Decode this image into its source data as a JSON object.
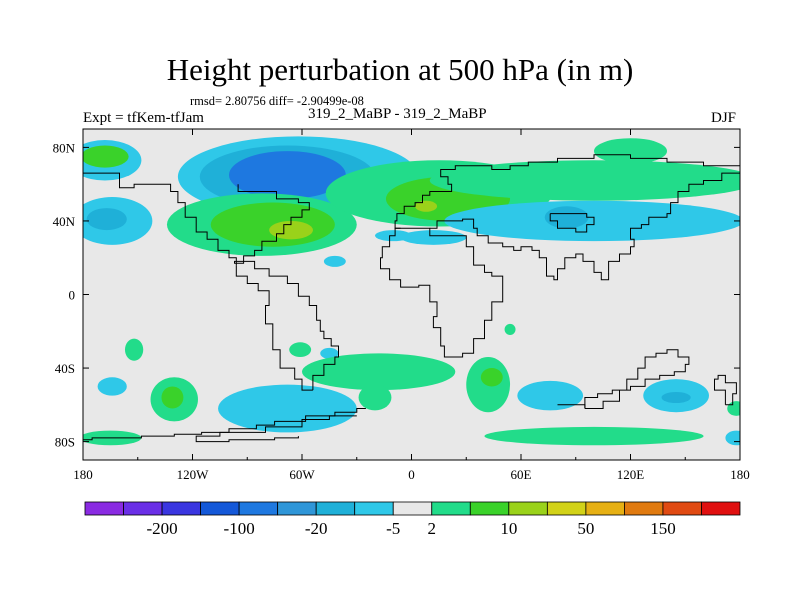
{
  "header": {
    "title": "Height perturbation at 500 hPa (in m)",
    "stats": "rmsd= 2.80756 diff= -2.90499e-08",
    "experiment": "Expt = tfKem-tfJam",
    "runs": "319_2_MaBP - 319_2_MaBP",
    "season": "DJF"
  },
  "chart_data": {
    "type": "heatmap",
    "title": "Height perturbation at 500 hPa (in m)",
    "xlabel": "",
    "ylabel": "",
    "xlim": [
      -180,
      180
    ],
    "ylim": [
      -90,
      90
    ],
    "x_ticks": [
      {
        "value": -180,
        "label": "180"
      },
      {
        "value": -120,
        "label": "120W"
      },
      {
        "value": -60,
        "label": "60W"
      },
      {
        "value": 0,
        "label": "0"
      },
      {
        "value": 60,
        "label": "60E"
      },
      {
        "value": 120,
        "label": "120E"
      },
      {
        "value": 180,
        "label": "180"
      }
    ],
    "y_ticks": [
      {
        "value": 80,
        "label": "80N"
      },
      {
        "value": 40,
        "label": "40N"
      },
      {
        "value": 0,
        "label": "0"
      },
      {
        "value": -40,
        "label": "40S"
      },
      {
        "value": -80,
        "label": "80S"
      }
    ],
    "colorbar": {
      "colors": [
        "#8a2be2",
        "#6a2fe6",
        "#3a36e0",
        "#1458d8",
        "#1e78e0",
        "#2f96d8",
        "#1fb0d8",
        "#2fc8e8",
        "#e8e8e8",
        "#22dc8a",
        "#3ad22a",
        "#9ad21a",
        "#d2d218",
        "#e6b014",
        "#e07a10",
        "#e04a12",
        "#e01010"
      ],
      "labels": [
        "-200",
        "-100",
        "-20",
        "-5",
        "2",
        "10",
        "50",
        "150"
      ],
      "label_after_box": [
        1,
        3,
        5,
        7,
        8,
        10,
        12,
        14
      ]
    },
    "regions": [
      {
        "name": "arctic-west",
        "color": "#2fc8e8",
        "lon": -168,
        "lat": 73,
        "rx": 20,
        "ry": 11
      },
      {
        "name": "arctic-west-core",
        "color": "#3ad22a",
        "lon": -168,
        "lat": 75,
        "rx": 13,
        "ry": 6
      },
      {
        "name": "pacific-north-low",
        "color": "#2fc8e8",
        "lon": -62,
        "lat": 64,
        "rx": 66,
        "ry": 22
      },
      {
        "name": "pacific-north-low-mid",
        "color": "#1fb0d8",
        "lon": -68,
        "lat": 64,
        "rx": 48,
        "ry": 17
      },
      {
        "name": "pacific-north-low-core",
        "color": "#1e78e0",
        "lon": -68,
        "lat": 65,
        "rx": 32,
        "ry": 13
      },
      {
        "name": "pacific-west-40n",
        "color": "#2fc8e8",
        "lon": -164,
        "lat": 40,
        "rx": 22,
        "ry": 13
      },
      {
        "name": "pacific-west-40n-core",
        "color": "#1fb0d8",
        "lon": -167,
        "lat": 41,
        "rx": 11,
        "ry": 6
      },
      {
        "name": "north-pacific-high",
        "color": "#22dc8a",
        "lon": -82,
        "lat": 38,
        "rx": 52,
        "ry": 17
      },
      {
        "name": "north-pacific-high-mid",
        "color": "#3ad22a",
        "lon": -76,
        "lat": 38,
        "rx": 34,
        "ry": 12
      },
      {
        "name": "north-pacific-high-core",
        "color": "#9ad21a",
        "lon": -66,
        "lat": 35,
        "rx": 12,
        "ry": 5
      },
      {
        "name": "atlantic-europe-high",
        "color": "#22dc8a",
        "lon": 15,
        "lat": 55,
        "rx": 62,
        "ry": 18
      },
      {
        "name": "europe-high-mid",
        "color": "#3ad22a",
        "lon": 20,
        "lat": 52,
        "rx": 34,
        "ry": 12
      },
      {
        "name": "europe-high-core",
        "color": "#9ad21a",
        "lon": 8,
        "lat": 48,
        "rx": 6,
        "ry": 3
      },
      {
        "name": "asia-jet-high",
        "color": "#22dc8a",
        "lon": 100,
        "lat": 62,
        "rx": 90,
        "ry": 11
      },
      {
        "name": "north-east-high",
        "color": "#22dc8a",
        "lon": 120,
        "lat": 78,
        "rx": 20,
        "ry": 7
      },
      {
        "name": "asia-low-band",
        "color": "#2fc8e8",
        "lon": 100,
        "lat": 40,
        "rx": 82,
        "ry": 11
      },
      {
        "name": "asia-low-core",
        "color": "#1fb0d8",
        "lon": 85,
        "lat": 42,
        "rx": 12,
        "ry": 6
      },
      {
        "name": "east-pacific-low",
        "color": "#2fc8e8",
        "lon": 12,
        "lat": 31,
        "rx": 18,
        "ry": 4
      },
      {
        "name": "tropics-spot",
        "color": "#2fc8e8",
        "lon": -42,
        "lat": 18,
        "rx": 6,
        "ry": 3
      },
      {
        "name": "indian-spot",
        "color": "#22dc8a",
        "lon": 54,
        "lat": -19,
        "rx": 3,
        "ry": 3
      },
      {
        "name": "south-pacific-spot-1",
        "color": "#22dc8a",
        "lon": -152,
        "lat": -30,
        "rx": 5,
        "ry": 6
      },
      {
        "name": "south-pacific-spot-2",
        "color": "#22dc8a",
        "lon": -61,
        "lat": -30,
        "rx": 6,
        "ry": 4
      },
      {
        "name": "south-pacific-spot-3",
        "color": "#2fc8e8",
        "lon": -45,
        "lat": -32,
        "rx": 5,
        "ry": 3
      },
      {
        "name": "southwest-pacific-low",
        "color": "#2fc8e8",
        "lon": -164,
        "lat": -50,
        "rx": 8,
        "ry": 5
      },
      {
        "name": "south-pacific-high",
        "color": "#22dc8a",
        "lon": -130,
        "lat": -57,
        "rx": 13,
        "ry": 12
      },
      {
        "name": "south-pacific-high-core",
        "color": "#3ad22a",
        "lon": -131,
        "lat": -56,
        "rx": 6,
        "ry": 6
      },
      {
        "name": "south-atlantic-band-low",
        "color": "#2fc8e8",
        "lon": -68,
        "lat": -62,
        "rx": 38,
        "ry": 13
      },
      {
        "name": "south-atlantic-band-high",
        "color": "#22dc8a",
        "lon": -18,
        "lat": -42,
        "rx": 42,
        "ry": 10
      },
      {
        "name": "south-atlantic-spot",
        "color": "#22dc8a",
        "lon": -20,
        "lat": -56,
        "rx": 9,
        "ry": 7
      },
      {
        "name": "south-indian-high",
        "color": "#22dc8a",
        "lon": 42,
        "lat": -49,
        "rx": 12,
        "ry": 15
      },
      {
        "name": "south-indian-high-core",
        "color": "#3ad22a",
        "lon": 44,
        "lat": -45,
        "rx": 6,
        "ry": 5
      },
      {
        "name": "south-indian-low",
        "color": "#2fc8e8",
        "lon": 76,
        "lat": -55,
        "rx": 18,
        "ry": 8
      },
      {
        "name": "southern-ocean-high",
        "color": "#22dc8a",
        "lon": 100,
        "lat": -77,
        "rx": 60,
        "ry": 5
      },
      {
        "name": "southeast-low",
        "color": "#2fc8e8",
        "lon": 145,
        "lat": -55,
        "rx": 18,
        "ry": 9
      },
      {
        "name": "southeast-low-core",
        "color": "#1fb0d8",
        "lon": 145,
        "lat": -56,
        "rx": 8,
        "ry": 3
      },
      {
        "name": "antarctic-west-high",
        "color": "#22dc8a",
        "lon": -165,
        "lat": -78,
        "rx": 17,
        "ry": 4
      },
      {
        "name": "antarctic-east-low",
        "color": "#2fc8e8",
        "lon": 178,
        "lat": -78,
        "rx": 6,
        "ry": 4
      },
      {
        "name": "antarctic-east-high",
        "color": "#22dc8a",
        "lon": 178,
        "lat": -62,
        "rx": 5,
        "ry": 4
      },
      {
        "name": "north-central-low",
        "color": "#2fc8e8",
        "lon": -10,
        "lat": 32,
        "rx": 10,
        "ry": 3
      }
    ],
    "boundaries": [
      [
        [
          -25,
          -62
        ],
        [
          -30,
          -64
        ],
        [
          -42,
          -66
        ],
        [
          -58,
          -69
        ],
        [
          -75,
          -71
        ],
        [
          -85,
          -73
        ],
        [
          -100,
          -75
        ],
        [
          -115,
          -76
        ],
        [
          -130,
          -77
        ],
        [
          -148,
          -78
        ],
        [
          -160,
          -78
        ],
        [
          -175,
          -79
        ],
        [
          -180,
          -80
        ]
      ],
      [
        [
          -30,
          -66
        ],
        [
          -45,
          -68
        ],
        [
          -60,
          -72
        ],
        [
          -80,
          -75
        ],
        [
          -105,
          -77
        ],
        [
          -118,
          -78
        ],
        [
          -118,
          -80
        ],
        [
          -100,
          -79
        ],
        [
          -75,
          -78
        ],
        [
          -62,
          -77
        ]
      ],
      [
        [
          -54,
          -52
        ],
        [
          -54,
          -44
        ],
        [
          -48,
          -38
        ],
        [
          -42,
          -34
        ],
        [
          -40,
          -28
        ],
        [
          -44,
          -24
        ],
        [
          -48,
          -20
        ],
        [
          -50,
          -14
        ],
        [
          -52,
          -6
        ],
        [
          -56,
          -1
        ],
        [
          -62,
          6
        ],
        [
          -68,
          10
        ],
        [
          -75,
          10
        ],
        [
          -78,
          14
        ],
        [
          -86,
          18
        ],
        [
          -97,
          17
        ],
        [
          -92,
          21
        ],
        [
          -86,
          24
        ],
        [
          -82,
          29
        ],
        [
          -74,
          33
        ],
        [
          -70,
          38
        ],
        [
          -66,
          42
        ],
        [
          -60,
          46
        ],
        [
          -56,
          50
        ],
        [
          -62,
          52
        ],
        [
          -74,
          56
        ],
        [
          -84,
          56
        ],
        [
          -95,
          60
        ]
      ],
      [
        [
          -54,
          -52
        ],
        [
          -60,
          -46
        ],
        [
          -64,
          -40
        ],
        [
          -72,
          -30
        ],
        [
          -76,
          -16
        ],
        [
          -80,
          -6
        ],
        [
          -78,
          2
        ],
        [
          -84,
          6
        ],
        [
          -90,
          10
        ],
        [
          -96,
          16
        ]
      ],
      [
        [
          -6,
          36
        ],
        [
          -9,
          32
        ],
        [
          -12,
          26
        ],
        [
          -16,
          20
        ],
        [
          -17,
          14
        ],
        [
          -12,
          8
        ],
        [
          -6,
          4
        ],
        [
          4,
          5
        ],
        [
          10,
          4
        ],
        [
          10,
          -4
        ],
        [
          14,
          -12
        ],
        [
          12,
          -18
        ],
        [
          16,
          -28
        ],
        [
          18,
          -34
        ],
        [
          22,
          -34
        ],
        [
          28,
          -32
        ],
        [
          34,
          -24
        ],
        [
          40,
          -14
        ],
        [
          44,
          -4
        ],
        [
          50,
          10
        ],
        [
          44,
          12
        ],
        [
          40,
          16
        ],
        [
          34,
          26
        ],
        [
          30,
          32
        ],
        [
          24,
          32
        ],
        [
          16,
          32
        ],
        [
          10,
          36
        ],
        [
          4,
          36
        ],
        [
          -6,
          36
        ]
      ],
      [
        [
          10,
          36
        ],
        [
          14,
          40
        ],
        [
          20,
          40
        ],
        [
          26,
          40
        ],
        [
          28,
          41
        ],
        [
          34,
          36
        ],
        [
          36,
          32
        ],
        [
          42,
          28
        ],
        [
          50,
          26
        ],
        [
          56,
          24
        ],
        [
          60,
          26
        ],
        [
          66,
          24
        ],
        [
          70,
          20
        ],
        [
          74,
          10
        ],
        [
          78,
          8
        ],
        [
          80,
          14
        ],
        [
          84,
          20
        ],
        [
          90,
          22
        ],
        [
          94,
          18
        ],
        [
          100,
          12
        ],
        [
          104,
          8
        ],
        [
          108,
          12
        ],
        [
          108,
          18
        ],
        [
          114,
          22
        ],
        [
          120,
          26
        ],
        [
          122,
          30
        ],
        [
          120,
          36
        ],
        [
          126,
          38
        ],
        [
          130,
          42
        ],
        [
          140,
          44
        ],
        [
          142,
          50
        ],
        [
          146,
          56
        ],
        [
          152,
          60
        ],
        [
          160,
          62
        ],
        [
          170,
          66
        ],
        [
          180,
          66
        ]
      ],
      [
        [
          -6,
          36
        ],
        [
          -9,
          40
        ],
        [
          -8,
          44
        ],
        [
          -4,
          48
        ],
        [
          2,
          50
        ],
        [
          6,
          54
        ],
        [
          10,
          56
        ],
        [
          16,
          56
        ],
        [
          22,
          60
        ],
        [
          20,
          64
        ],
        [
          16,
          68
        ],
        [
          24,
          70
        ],
        [
          34,
          70
        ],
        [
          44,
          68
        ],
        [
          54,
          70
        ],
        [
          64,
          72
        ],
        [
          72,
          72
        ],
        [
          80,
          74
        ],
        [
          100,
          76
        ],
        [
          120,
          74
        ],
        [
          140,
          72
        ],
        [
          160,
          70
        ],
        [
          180,
          66
        ]
      ],
      [
        [
          -180,
          66
        ],
        [
          -168,
          66
        ],
        [
          -160,
          58
        ],
        [
          -152,
          60
        ],
        [
          -140,
          60
        ],
        [
          -132,
          56
        ],
        [
          -128,
          50
        ],
        [
          -124,
          42
        ],
        [
          -118,
          34
        ],
        [
          -112,
          30
        ],
        [
          -106,
          24
        ],
        [
          -100,
          20
        ],
        [
          -96,
          16
        ]
      ],
      [
        [
          95,
          -62
        ],
        [
          105,
          -58
        ],
        [
          114,
          -52
        ],
        [
          118,
          -46
        ],
        [
          124,
          -40
        ],
        [
          128,
          -34
        ],
        [
          134,
          -32
        ],
        [
          140,
          -30
        ],
        [
          146,
          -34
        ],
        [
          152,
          -38
        ],
        [
          150,
          -42
        ],
        [
          144,
          -44
        ],
        [
          136,
          -46
        ],
        [
          128,
          -50
        ],
        [
          120,
          -52
        ],
        [
          110,
          -54
        ],
        [
          102,
          -56
        ],
        [
          95,
          -62
        ]
      ],
      [
        [
          172,
          -60
        ],
        [
          176,
          -54
        ],
        [
          178,
          -48
        ],
        [
          172,
          -44
        ],
        [
          168,
          -46
        ],
        [
          166,
          -52
        ],
        [
          172,
          -60
        ]
      ],
      [
        [
          80,
          -60
        ],
        [
          95,
          -62
        ]
      ],
      [
        [
          76,
          44
        ],
        [
          96,
          42
        ],
        [
          100,
          38
        ],
        [
          96,
          34
        ],
        [
          90,
          36
        ],
        [
          80,
          40
        ],
        [
          76,
          44
        ]
      ]
    ]
  }
}
